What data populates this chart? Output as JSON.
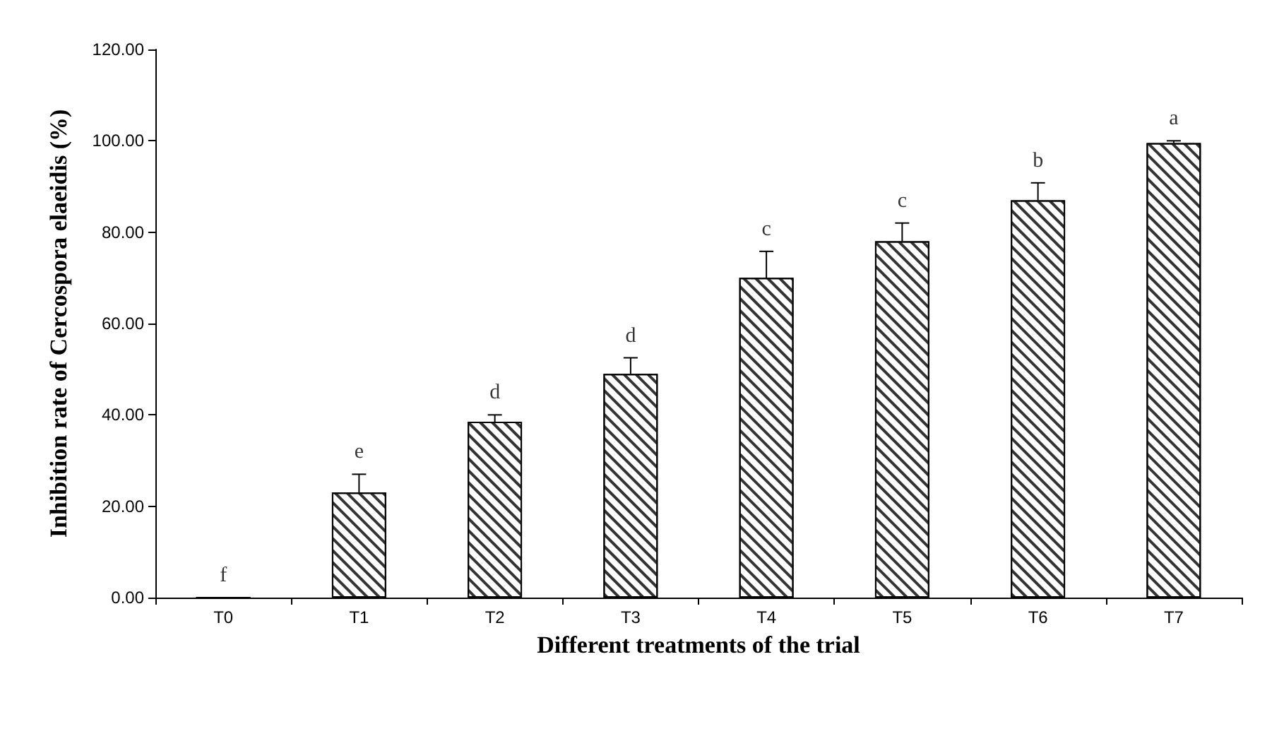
{
  "chart_data": {
    "type": "bar",
    "xlabel": "Different treatments of the trial",
    "ylabel": "Inhibition rate of Cercospora elaeidis (%)",
    "categories": [
      "T0",
      "T1",
      "T2",
      "T3",
      "T4",
      "T5",
      "T6",
      "T7"
    ],
    "series": [
      {
        "color": "#ffffff",
        "values": [
          0,
          23,
          38.5,
          49,
          70,
          78,
          87,
          99.5
        ],
        "errors": [
          null,
          4,
          1.5,
          3.5,
          5.8,
          4,
          3.8,
          0.5
        ]
      }
    ],
    "ylim": [
      0,
      120
    ],
    "yticks": [
      {
        "value": 0,
        "label": "0.00"
      },
      {
        "value": 20,
        "label": "20.00"
      },
      {
        "value": 40,
        "label": "40.00"
      },
      {
        "value": 60,
        "label": "60.00"
      },
      {
        "value": 80,
        "label": "80.00"
      },
      {
        "value": 100,
        "label": "100.00"
      },
      {
        "value": 120,
        "label": "120.00"
      }
    ],
    "annotations": [
      {
        "text": "f",
        "x": "T0",
        "y": 0
      },
      {
        "text": "e",
        "x": "T1",
        "y": 27
      },
      {
        "text": "d",
        "x": "T2",
        "y": 40
      },
      {
        "text": "d",
        "x": "T3",
        "y": 52.5
      },
      {
        "text": "c",
        "x": "T4",
        "y": 75.8
      },
      {
        "text": "c",
        "x": "T5",
        "y": 82
      },
      {
        "text": "b",
        "x": "T6",
        "y": 90.8
      },
      {
        "text": "a",
        "x": "T7",
        "y": 100
      }
    ],
    "grid": false
  }
}
